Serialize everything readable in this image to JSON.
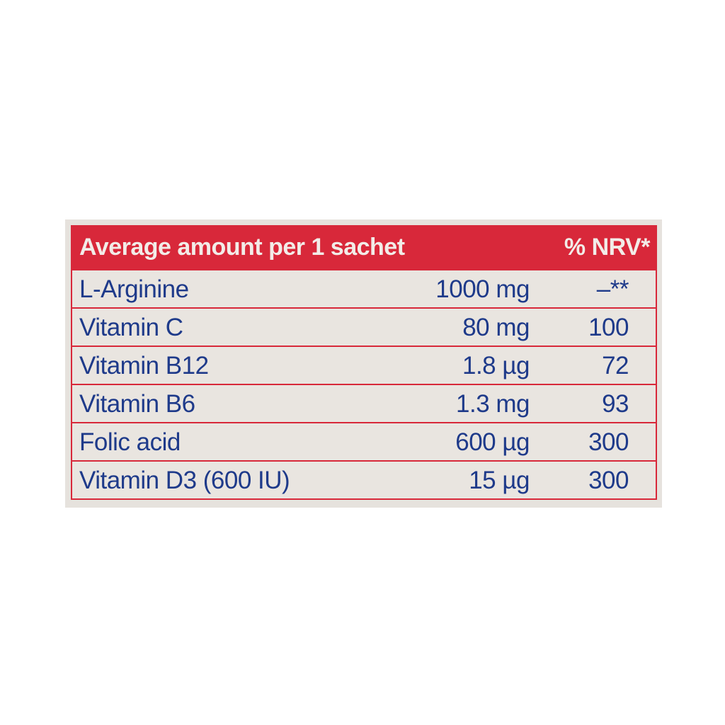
{
  "header": {
    "left": "Average amount per 1 sachet",
    "right": "% NRV*"
  },
  "rows": [
    {
      "name": "L-Arginine",
      "amount": "1000 mg",
      "nrv": "–**"
    },
    {
      "name": "Vitamin C",
      "amount": "80 mg",
      "nrv": "100"
    },
    {
      "name": "Vitamin B12",
      "amount": "1.8 µg",
      "nrv": "72"
    },
    {
      "name": "Vitamin B6",
      "amount": "1.3 mg",
      "nrv": "93"
    },
    {
      "name": "Folic acid",
      "amount": "600 µg",
      "nrv": "300"
    },
    {
      "name": "Vitamin D3 (600 IU)",
      "amount": "15 µg",
      "nrv": "300"
    }
  ],
  "colors": {
    "accent": "#d8283a",
    "text": "#1e3a8a",
    "background": "#e9e5e0"
  }
}
